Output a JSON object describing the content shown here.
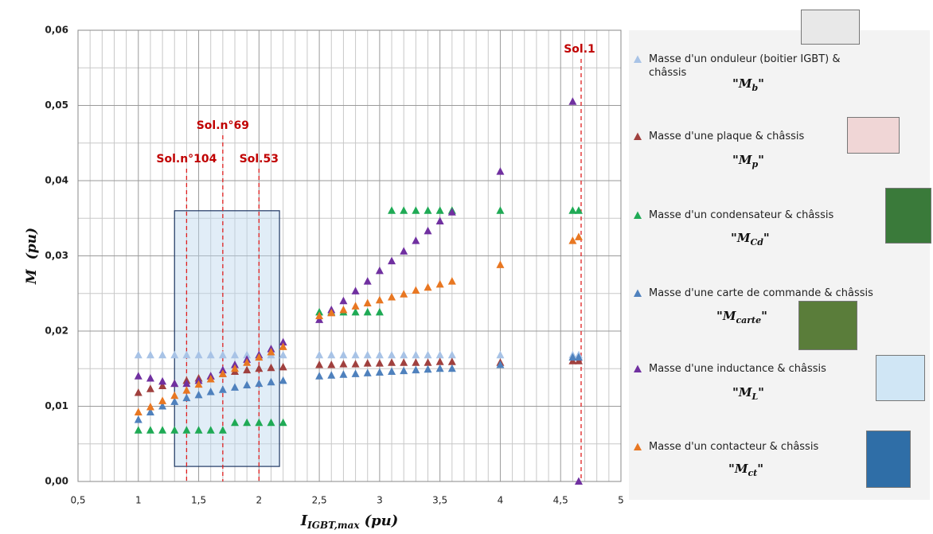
{
  "chart_data": {
    "type": "scatter",
    "x": [
      1,
      1.1,
      1.2,
      1.3,
      1.4,
      1.5,
      1.6,
      1.7,
      1.8,
      1.9,
      2,
      2.1,
      2.2,
      2.5,
      2.6,
      2.7,
      2.8,
      2.9,
      3,
      3.1,
      3.2,
      3.3,
      3.4,
      3.5,
      3.6,
      4,
      4.6,
      4.65
    ],
    "series": [
      {
        "name": "Masse d'un onduleur (boitier IGBT)  & châssis",
        "symbol": {
          "base": "M",
          "sub": "b"
        },
        "color": "#a8c3e6",
        "values": [
          0.0168,
          0.0168,
          0.0168,
          0.0168,
          0.0168,
          0.0168,
          0.0168,
          0.0168,
          0.0168,
          0.0168,
          0.0168,
          0.0168,
          0.0168,
          0.0168,
          0.0168,
          0.0168,
          0.0168,
          0.0168,
          0.0168,
          0.0168,
          0.0168,
          0.0168,
          0.0168,
          0.0168,
          0.0168,
          0.0168,
          0.0168,
          0.0168
        ]
      },
      {
        "name": "Masse d'une plaque & châssis",
        "symbol": {
          "base": "M",
          "sub": "p"
        },
        "color": "#a0403e",
        "values": [
          0.0118,
          0.0123,
          0.0127,
          0.013,
          0.0134,
          0.0137,
          0.014,
          0.0143,
          0.0146,
          0.0148,
          0.015,
          0.0151,
          0.0152,
          0.0155,
          0.0155,
          0.0156,
          0.0156,
          0.0157,
          0.0157,
          0.0158,
          0.0158,
          0.0158,
          0.0158,
          0.0159,
          0.0159,
          0.0158,
          0.016,
          0.016
        ]
      },
      {
        "name": "Masse d'un condensateur & châssis",
        "symbol": {
          "base": "M",
          "sub": "Cd"
        },
        "color": "#1faa55",
        "values": [
          0.0068,
          0.0068,
          0.0068,
          0.0068,
          0.0068,
          0.0068,
          0.0068,
          0.0068,
          0.0078,
          0.0078,
          0.0078,
          0.0078,
          0.0078,
          0.0225,
          0.0225,
          0.0225,
          0.0225,
          0.0225,
          0.0225,
          0.036,
          0.036,
          0.036,
          0.036,
          0.036,
          0.036,
          0.036,
          0.036,
          0.036
        ]
      },
      {
        "name": "Masse d'une carte de commande & châssis",
        "symbol": {
          "base": "M",
          "sub": "carte"
        },
        "color": "#4f81bd",
        "values": [
          0.0082,
          0.0092,
          0.01,
          0.0106,
          0.0111,
          0.0115,
          0.0119,
          0.0122,
          0.0125,
          0.0128,
          0.013,
          0.0132,
          0.0134,
          0.014,
          0.0141,
          0.0142,
          0.0143,
          0.0144,
          0.0145,
          0.0146,
          0.0147,
          0.0148,
          0.0149,
          0.015,
          0.015,
          0.0155,
          0.0165,
          0.0165
        ]
      },
      {
        "name": "Masse d'une inductance & châssis",
        "symbol": {
          "base": "M",
          "sub": "L"
        },
        "color": "#7030a0",
        "values": [
          0.014,
          0.0137,
          0.0133,
          0.013,
          0.013,
          0.0134,
          0.014,
          0.0148,
          0.0155,
          0.0162,
          0.0168,
          0.0176,
          0.0185,
          0.0215,
          0.0228,
          0.024,
          0.0253,
          0.0266,
          0.028,
          0.0293,
          0.0306,
          0.032,
          0.0333,
          0.0346,
          0.0358,
          0.0412,
          0.0505,
          0
        ]
      },
      {
        "name": "Masse d'un contacteur & châssis",
        "symbol": {
          "base": "M",
          "sub": "ct"
        },
        "color": "#e87722",
        "values": [
          0.0092,
          0.0099,
          0.0107,
          0.0114,
          0.0121,
          0.0129,
          0.0136,
          0.0143,
          0.015,
          0.0158,
          0.0165,
          0.0172,
          0.0179,
          0.022,
          0.0224,
          0.0228,
          0.0233,
          0.0237,
          0.0241,
          0.0245,
          0.0249,
          0.0254,
          0.0258,
          0.0262,
          0.0266,
          0.0288,
          0.032,
          0.0325
        ]
      }
    ],
    "quote": "\"",
    "x_label": {
      "base": "I",
      "sub": "IGBT,max",
      "unit": "(pu)"
    },
    "y_label": {
      "base": "M",
      "unit": "(pu)"
    },
    "xlim": [
      0.5,
      5
    ],
    "xticks": [
      {
        "value": 0.5,
        "label": "0,5"
      },
      1,
      {
        "value": 1.5,
        "label": "1,5"
      },
      2,
      {
        "value": 2.5,
        "label": "2,5"
      },
      3,
      {
        "value": 3.5,
        "label": "3,5"
      },
      4,
      {
        "value": 4.5,
        "label": "4,5"
      },
      5
    ],
    "ylim": [
      0,
      0.06
    ],
    "yticks": [
      {
        "value": 0,
        "label": "0,00"
      },
      {
        "value": 0.01,
        "label": "0,01"
      },
      {
        "value": 0.02,
        "label": "0,02"
      },
      {
        "value": 0.03,
        "label": "0,03"
      },
      {
        "value": 0.04,
        "label": "0,04"
      },
      {
        "value": 0.05,
        "label": "0,05"
      },
      {
        "value": 0.06,
        "label": "0,06"
      }
    ],
    "grid": true,
    "annotations": [
      {
        "x": 1.4,
        "text": "Sol.n°104"
      },
      {
        "x": 1.7,
        "text": "Sol.n°69"
      },
      {
        "x": 2,
        "text": "Sol.53"
      },
      {
        "x": 4.67,
        "text": "Sol.1"
      }
    ],
    "highlight": {
      "x": [
        1.3,
        2.17
      ],
      "y": [
        0.002,
        0.036
      ]
    }
  }
}
